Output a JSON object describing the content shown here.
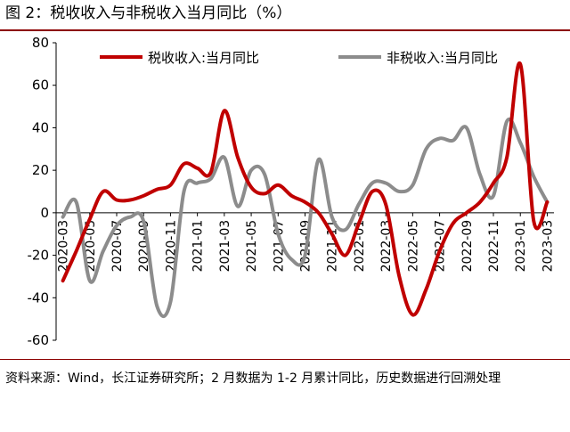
{
  "figure": {
    "title": "图 2：税收收入与非税收入当月同比（%）",
    "source": "资料来源：Wind，长江证券研究所；2 月数据为 1-2 月累计同比，历史数据进行回溯处理"
  },
  "chart_data": {
    "type": "line",
    "x": [
      "2020-03",
      "2020-04",
      "2020-05",
      "2020-06",
      "2020-07",
      "2020-08",
      "2020-09",
      "2020-10",
      "2020-11",
      "2020-12",
      "2021-01",
      "2021-02",
      "2021-03",
      "2021-04",
      "2021-05",
      "2021-06",
      "2021-07",
      "2021-08",
      "2021-09",
      "2021-10",
      "2021-11",
      "2021-12",
      "2022-01",
      "2022-02",
      "2022-03",
      "2022-04",
      "2022-05",
      "2022-06",
      "2022-07",
      "2022-08",
      "2022-09",
      "2022-10",
      "2022-11",
      "2022-12",
      "2023-01",
      "2023-02",
      "2023-03"
    ],
    "tick_labels": [
      "2020-03",
      "2020-05",
      "2020-07",
      "2020-09",
      "2020-11",
      "2021-01",
      "2021-03",
      "2021-05",
      "2021-07",
      "2021-09",
      "2021-11",
      "2022-01",
      "2022-03",
      "2022-05",
      "2022-07",
      "2022-09",
      "2022-11",
      "2023-01",
      "2023-03"
    ],
    "ylim": [
      -60,
      80
    ],
    "yticks": [
      -60,
      -40,
      -20,
      0,
      20,
      40,
      60,
      80
    ],
    "legend_position": "top",
    "series": [
      {
        "name": "税收收入:当月同比",
        "color": "#c00000",
        "values": [
          -32,
          -18,
          -3,
          10,
          6,
          6,
          8,
          11,
          13,
          23,
          21,
          19,
          48,
          26,
          12,
          9,
          13,
          8,
          5,
          0,
          -10,
          -20,
          -5,
          10,
          4,
          -30,
          -48,
          -36,
          -18,
          -5,
          0,
          5,
          14,
          26,
          70,
          -4,
          5
        ]
      },
      {
        "name": "非税收入:当月同比",
        "color": "#8c8c8c",
        "values": [
          -2,
          5,
          -32,
          -18,
          -6,
          -2,
          -4,
          -44,
          -42,
          10,
          14,
          16,
          26,
          3,
          20,
          18,
          -10,
          -22,
          -20,
          25,
          -2,
          -8,
          4,
          14,
          14,
          10,
          13,
          30,
          35,
          34,
          40,
          18,
          8,
          43,
          33,
          17,
          5
        ]
      }
    ]
  }
}
